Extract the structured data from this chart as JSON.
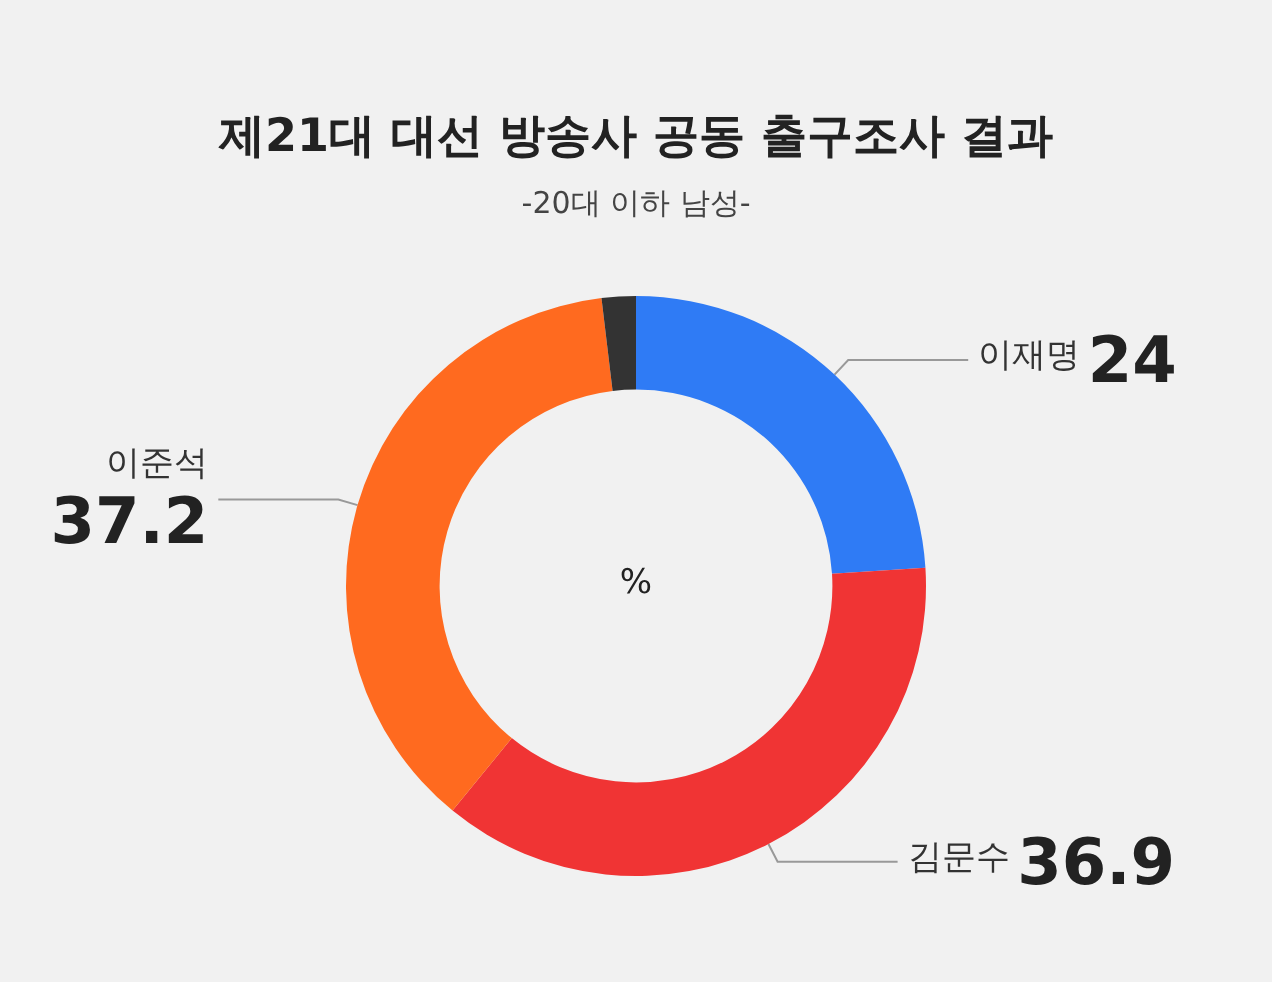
{
  "chart_data": {
    "type": "donut",
    "title": "제21대 대선 방송사 공동 출구조사 결과",
    "subtitle": "-20대 이하 남성-",
    "categories": [
      "이재명",
      "김문수",
      "이준석",
      null
    ],
    "values": [
      24,
      36.9,
      37.2,
      1.9
    ],
    "colors": [
      "#2f7bf5",
      "#f03434",
      "#ff6a1f",
      "#333333"
    ],
    "value_labels": [
      "24",
      "36.9",
      "37.2",
      null
    ],
    "annotations": [
      "%"
    ]
  }
}
